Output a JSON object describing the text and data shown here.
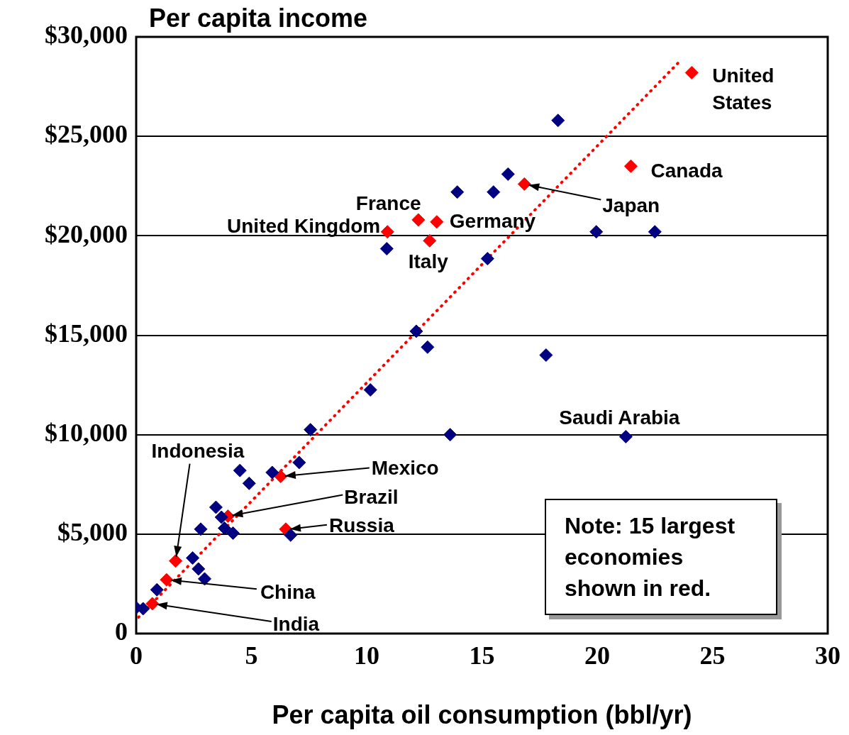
{
  "chart_data": {
    "type": "scatter",
    "title": "Per capita income",
    "xlabel": "Per capita oil consumption (bbl/yr)",
    "xlim": [
      0,
      30
    ],
    "xticks": [
      0,
      5,
      10,
      15,
      20,
      25,
      30
    ],
    "ylim": [
      0,
      30000
    ],
    "yticks": [
      {
        "value": 0,
        "label": "0"
      },
      {
        "value": 5000,
        "label": "$5,000"
      },
      {
        "value": 10000,
        "label": "$10,000"
      },
      {
        "value": 15000,
        "label": "$15,000"
      },
      {
        "value": 20000,
        "label": "$20,000"
      },
      {
        "value": 25000,
        "label": "$25,000"
      },
      {
        "value": 30000,
        "label": "$30,000"
      }
    ],
    "grid": "y",
    "legend": false,
    "marker": "diamond",
    "series": [
      {
        "color": "#000080",
        "x": [
          0,
          0.3,
          0.9,
          2.45,
          2.7,
          2.97,
          2.8,
          3.46,
          3.7,
          3.83,
          4.2,
          4.5,
          4.9,
          5.9,
          7.07,
          7.56,
          6.7,
          10.16,
          10.87,
          12.15,
          12.64,
          13.62,
          13.93,
          15.5,
          15.24,
          16.13,
          17.78,
          18.3,
          19.96,
          21.24,
          22.5
        ],
        "values": [
          1300,
          1250,
          2200,
          3800,
          3250,
          2750,
          5250,
          6350,
          5850,
          5300,
          5050,
          8200,
          7550,
          8100,
          8600,
          10250,
          4950,
          12250,
          19350,
          15200,
          14400,
          10000,
          22200,
          22200,
          18850,
          23100,
          14000,
          25800,
          20200,
          9900,
          20200
        ]
      },
      {
        "color": "#ff0000",
        "x": [
          24.1,
          21.46,
          16.84,
          10.9,
          12.24,
          13.04,
          12.73,
          6.27,
          3.98,
          6.49,
          1.71,
          1.32,
          0.7
        ],
        "values": [
          28200,
          23500,
          22600,
          20200,
          20800,
          20700,
          19750,
          7900,
          5900,
          5250,
          3650,
          2700,
          1500
        ]
      },
      {
        "type": "line",
        "color": "#ff0000",
        "line_style": "dotted",
        "marker": "none",
        "x": [
          0.1,
          23.6
        ],
        "values": [
          820,
          28800
        ]
      }
    ],
    "annotations": [
      {
        "text": "United States",
        "x": 24.1,
        "y": 28200
      },
      {
        "text": "Canada",
        "x": 21.46,
        "y": 23500
      },
      {
        "text": "Japan",
        "x": 16.84,
        "y": 22600
      },
      {
        "text": "United Kingdom",
        "x": 10.9,
        "y": 20200
      },
      {
        "text": "France",
        "x": 12.24,
        "y": 20800
      },
      {
        "text": "Germany",
        "x": 13.04,
        "y": 20700
      },
      {
        "text": "Italy",
        "x": 12.73,
        "y": 19750
      },
      {
        "text": "Mexico",
        "x": 6.27,
        "y": 7900
      },
      {
        "text": "Brazil",
        "x": 3.98,
        "y": 5900
      },
      {
        "text": "Russia",
        "x": 6.49,
        "y": 5250
      },
      {
        "text": "Indonesia",
        "x": 1.71,
        "y": 3650
      },
      {
        "text": "China",
        "x": 1.32,
        "y": 2700
      },
      {
        "text": "India",
        "x": 0.7,
        "y": 1500
      },
      {
        "text": "Saudi Arabia",
        "x": 21.24,
        "y": 9900
      },
      "Note: 15 largest economies shown in red."
    ]
  }
}
